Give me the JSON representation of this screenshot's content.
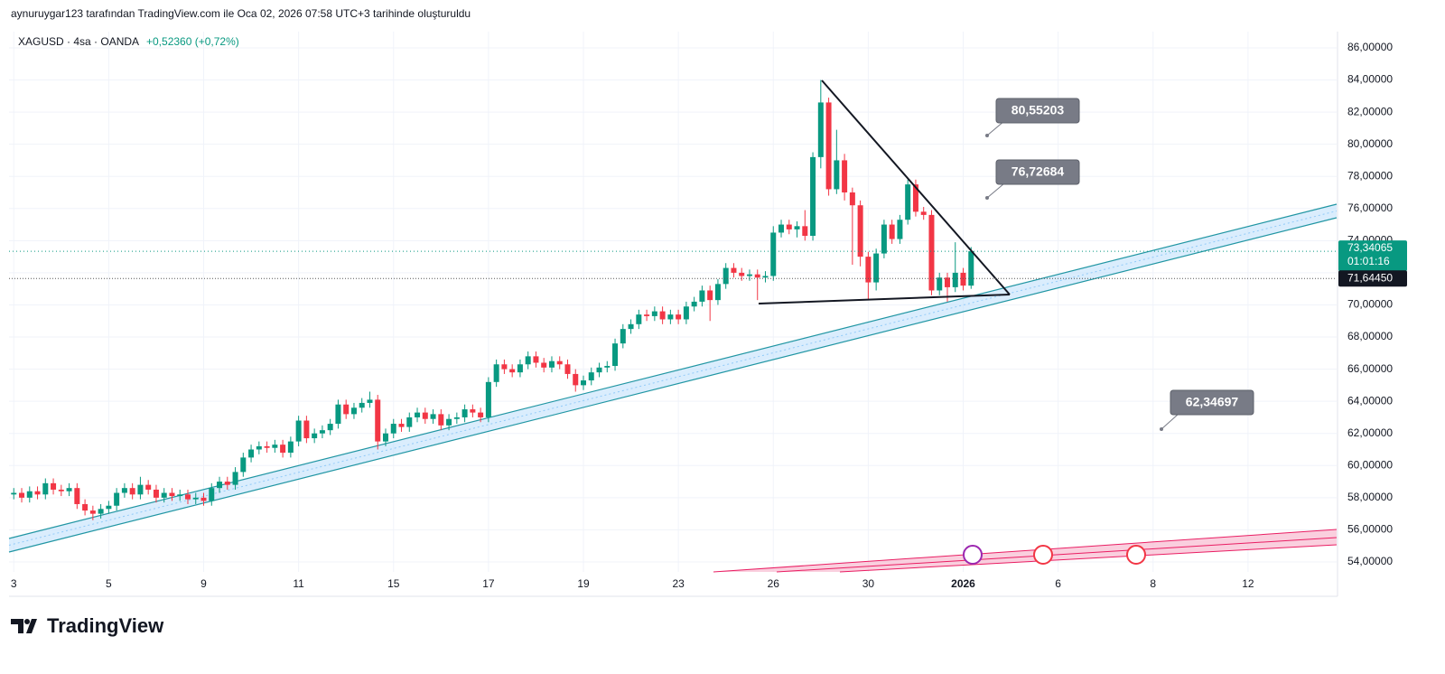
{
  "header": {
    "attribution": "aynuruygar123 tarafından TradingView.com ile Oca 02, 2026 07:58 UTC+3 tarihinde oluşturuldu"
  },
  "chart_data": {
    "type": "candlestick",
    "symbol": "XAGUSD · 4sa · OANDA",
    "change": "+0,52360 (+0,72%)",
    "up_color": "#089981",
    "down_color": "#f23645",
    "xlim": [
      -0.6,
      167.2
    ],
    "ylim": [
      53.38,
      87.01
    ],
    "xticks": [
      {
        "value": 0,
        "label": "3"
      },
      {
        "value": 12,
        "label": "5"
      },
      {
        "value": 24,
        "label": "9"
      },
      {
        "value": 36,
        "label": "11"
      },
      {
        "value": 48,
        "label": "15"
      },
      {
        "value": 60,
        "label": "17"
      },
      {
        "value": 72,
        "label": "19"
      },
      {
        "value": 84,
        "label": "23"
      },
      {
        "value": 96,
        "label": "26"
      },
      {
        "value": 108,
        "label": "30"
      },
      {
        "value": 120,
        "label": "2026"
      },
      {
        "value": 132,
        "label": "6"
      },
      {
        "value": 144,
        "label": "8"
      },
      {
        "value": 156,
        "label": "12"
      }
    ],
    "yticks": [
      {
        "value": 54,
        "label": "54,00000"
      },
      {
        "value": 56,
        "label": "56,00000"
      },
      {
        "value": 58,
        "label": "58,00000"
      },
      {
        "value": 60,
        "label": "60,00000"
      },
      {
        "value": 62,
        "label": "62,00000"
      },
      {
        "value": 64,
        "label": "64,00000"
      },
      {
        "value": 66,
        "label": "66,00000"
      },
      {
        "value": 68,
        "label": "68,00000"
      },
      {
        "value": 70,
        "label": "70,00000"
      },
      {
        "value": 72,
        "label": "72,00000"
      },
      {
        "value": 74,
        "label": "74,00000"
      },
      {
        "value": 76,
        "label": "76,00000"
      },
      {
        "value": 78,
        "label": "78,00000"
      },
      {
        "value": 80,
        "label": "80,00000"
      },
      {
        "value": 82,
        "label": "82,00000"
      },
      {
        "value": 84,
        "label": "84,00000"
      },
      {
        "value": 86,
        "label": "86,00000"
      }
    ],
    "grid": true,
    "open": [
      58.2,
      58.3,
      58.0,
      58.4,
      58.2,
      58.9,
      58.5,
      58.4,
      58.6,
      57.6,
      57.2,
      57.0,
      57.3,
      57.5,
      58.3,
      58.6,
      58.2,
      58.8,
      58.5,
      58.0,
      58.3,
      58.1,
      58.2,
      57.9,
      58.0,
      57.8,
      58.6,
      59.0,
      58.8,
      59.6,
      60.5,
      61.0,
      61.2,
      61.1,
      61.3,
      60.8,
      61.5,
      62.8,
      61.7,
      62.0,
      62.2,
      62.6,
      63.8,
      63.2,
      63.6,
      63.9,
      64.1,
      61.5,
      62.0,
      62.6,
      62.4,
      63.0,
      63.3,
      62.9,
      63.2,
      62.5,
      62.9,
      63.0,
      63.5,
      63.3,
      63.0,
      65.2,
      66.3,
      66.0,
      65.8,
      66.3,
      66.8,
      66.4,
      66.1,
      66.5,
      66.3,
      65.7,
      65.0,
      65.3,
      65.8,
      66.1,
      66.2,
      67.6,
      68.5,
      68.8,
      69.4,
      69.3,
      69.6,
      69.1,
      69.4,
      69.1,
      69.9,
      70.2,
      70.9,
      70.3,
      71.3,
      72.3,
      72.0,
      71.8,
      71.9,
      71.7,
      71.8,
      74.5,
      75.0,
      74.7,
      74.9,
      74.3,
      79.2,
      82.6,
      77.2,
      79.0,
      77.0,
      76.2,
      73.0,
      71.4,
      73.2,
      75.0,
      74.1,
      75.3,
      77.5,
      75.8,
      75.6,
      70.9,
      71.7,
      71.1,
      72.0,
      71.2
    ],
    "high": [
      58.6,
      58.6,
      58.7,
      58.7,
      59.2,
      59.2,
      58.8,
      58.9,
      58.9,
      57.9,
      57.5,
      57.6,
      57.8,
      58.6,
      58.9,
      58.9,
      59.3,
      59.1,
      58.8,
      58.6,
      58.6,
      58.5,
      58.5,
      58.3,
      58.3,
      58.9,
      59.3,
      59.3,
      59.9,
      60.8,
      61.3,
      61.5,
      61.5,
      61.6,
      61.6,
      61.8,
      63.1,
      63.1,
      62.3,
      62.5,
      62.9,
      64.1,
      64.1,
      63.9,
      64.2,
      64.6,
      64.4,
      62.3,
      62.9,
      62.9,
      63.3,
      63.6,
      63.6,
      63.5,
      63.5,
      63.2,
      63.3,
      63.8,
      63.8,
      63.6,
      65.5,
      66.6,
      66.6,
      66.3,
      66.6,
      67.1,
      67.1,
      66.7,
      66.8,
      66.8,
      66.6,
      66.0,
      65.6,
      66.1,
      66.4,
      66.5,
      67.9,
      68.8,
      69.1,
      69.7,
      69.7,
      69.9,
      69.9,
      69.7,
      69.7,
      70.2,
      70.5,
      71.2,
      71.2,
      71.6,
      72.6,
      72.6,
      72.3,
      72.2,
      72.2,
      72.1,
      74.9,
      75.3,
      75.3,
      75.2,
      75.9,
      79.5,
      84.0,
      82.9,
      80.9,
      79.4,
      77.3,
      76.5,
      73.3,
      73.5,
      75.3,
      75.3,
      75.6,
      77.8,
      77.8,
      76.1,
      75.9,
      72.0,
      72.0,
      73.9,
      72.3,
      73.6
    ],
    "low": [
      57.9,
      57.7,
      57.7,
      57.9,
      57.9,
      58.2,
      58.1,
      58.1,
      57.3,
      56.9,
      56.6,
      56.7,
      57.0,
      57.2,
      58.0,
      57.9,
      57.9,
      58.2,
      57.7,
      57.7,
      57.8,
      57.8,
      57.6,
      57.6,
      57.5,
      57.5,
      58.3,
      58.5,
      58.5,
      59.3,
      60.2,
      60.7,
      60.8,
      60.8,
      60.5,
      60.5,
      61.2,
      61.4,
      61.4,
      61.7,
      61.9,
      62.3,
      62.9,
      62.9,
      63.3,
      63.6,
      61.0,
      61.2,
      61.7,
      62.1,
      62.1,
      62.7,
      62.6,
      62.6,
      62.2,
      62.2,
      62.6,
      62.7,
      63.0,
      62.7,
      62.7,
      64.9,
      65.7,
      65.5,
      65.5,
      66.0,
      66.1,
      65.8,
      65.8,
      66.0,
      65.4,
      64.6,
      64.7,
      65.0,
      65.5,
      65.8,
      65.9,
      67.3,
      68.2,
      68.5,
      69.0,
      69.0,
      68.8,
      68.8,
      68.8,
      68.8,
      69.6,
      69.9,
      69.0,
      70.0,
      71.0,
      71.7,
      71.5,
      71.5,
      70.3,
      71.4,
      71.5,
      74.2,
      74.4,
      74.2,
      74.0,
      74.0,
      78.5,
      76.8,
      76.9,
      76.5,
      72.5,
      72.4,
      70.3,
      70.9,
      72.9,
      73.8,
      73.8,
      75.0,
      75.5,
      75.3,
      70.6,
      70.6,
      70.2,
      70.8,
      70.9,
      71.0
    ],
    "close": [
      58.3,
      58.0,
      58.4,
      58.2,
      58.9,
      58.5,
      58.4,
      58.6,
      57.6,
      57.2,
      57.0,
      57.3,
      57.5,
      58.3,
      58.6,
      58.2,
      58.8,
      58.5,
      58.0,
      58.3,
      58.1,
      58.2,
      57.9,
      58.0,
      57.8,
      58.6,
      59.0,
      58.8,
      59.6,
      60.5,
      61.0,
      61.2,
      61.1,
      61.3,
      60.8,
      61.5,
      62.8,
      61.7,
      62.0,
      62.2,
      62.6,
      63.8,
      63.2,
      63.6,
      63.9,
      64.1,
      61.5,
      62.0,
      62.6,
      62.4,
      63.0,
      63.3,
      62.9,
      63.2,
      62.5,
      62.9,
      63.0,
      63.5,
      63.3,
      63.0,
      65.2,
      66.3,
      66.0,
      65.8,
      66.3,
      66.8,
      66.4,
      66.1,
      66.5,
      66.3,
      65.7,
      65.0,
      65.3,
      65.8,
      66.1,
      66.2,
      67.6,
      68.5,
      68.8,
      69.4,
      69.3,
      69.6,
      69.1,
      69.4,
      69.1,
      69.9,
      70.2,
      70.9,
      70.3,
      71.3,
      72.3,
      72.0,
      71.8,
      71.9,
      71.7,
      71.8,
      74.5,
      75.0,
      74.7,
      74.9,
      74.3,
      79.2,
      82.6,
      77.2,
      79.0,
      77.0,
      76.2,
      73.0,
      71.4,
      73.2,
      75.0,
      74.1,
      75.3,
      77.5,
      75.8,
      75.6,
      70.9,
      71.7,
      71.1,
      72.0,
      71.2,
      73.34065
    ],
    "last_price": {
      "value": 73.34065,
      "label": "73,34065"
    },
    "countdown": "01:01:16",
    "reference_price": {
      "value": 71.6445,
      "label": "71,64450"
    },
    "annotations": [
      "80,55203",
      "76,72684",
      "62,34697"
    ]
  },
  "footer": {
    "brand": "TradingView"
  }
}
